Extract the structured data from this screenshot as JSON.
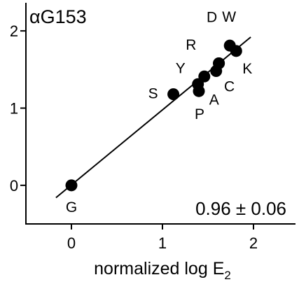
{
  "chart_data": {
    "type": "scatter",
    "title": "αG153",
    "xlabel": "normalized log E",
    "xlabel_subscript": "2",
    "ylabel": "",
    "xlim": [
      -0.5,
      2.5
    ],
    "ylim": [
      -0.5,
      2.4
    ],
    "xticks": [
      0,
      1,
      2
    ],
    "yticks": [
      0,
      1,
      2
    ],
    "grid": false,
    "points": [
      {
        "label": "G",
        "x": 0.0,
        "y": 0.0
      },
      {
        "label": "S",
        "x": 1.12,
        "y": 1.18
      },
      {
        "label": "P",
        "x": 1.4,
        "y": 1.22
      },
      {
        "label": "Y",
        "x": 1.39,
        "y": 1.31
      },
      {
        "label": "R",
        "x": 1.46,
        "y": 1.41
      },
      {
        "label": "A",
        "x": 1.59,
        "y": 1.48
      },
      {
        "label": "C",
        "x": 1.62,
        "y": 1.58
      },
      {
        "label": "W",
        "x": 1.74,
        "y": 1.81
      },
      {
        "label": "K",
        "x": 1.81,
        "y": 1.74
      },
      {
        "label": "D",
        "x": 1.62,
        "y": 1.58
      }
    ],
    "fit_line": {
      "x": [
        -0.17,
        1.97
      ],
      "y": [
        -0.16,
        1.92
      ]
    },
    "annotation": "0.96 ± 0.06"
  }
}
